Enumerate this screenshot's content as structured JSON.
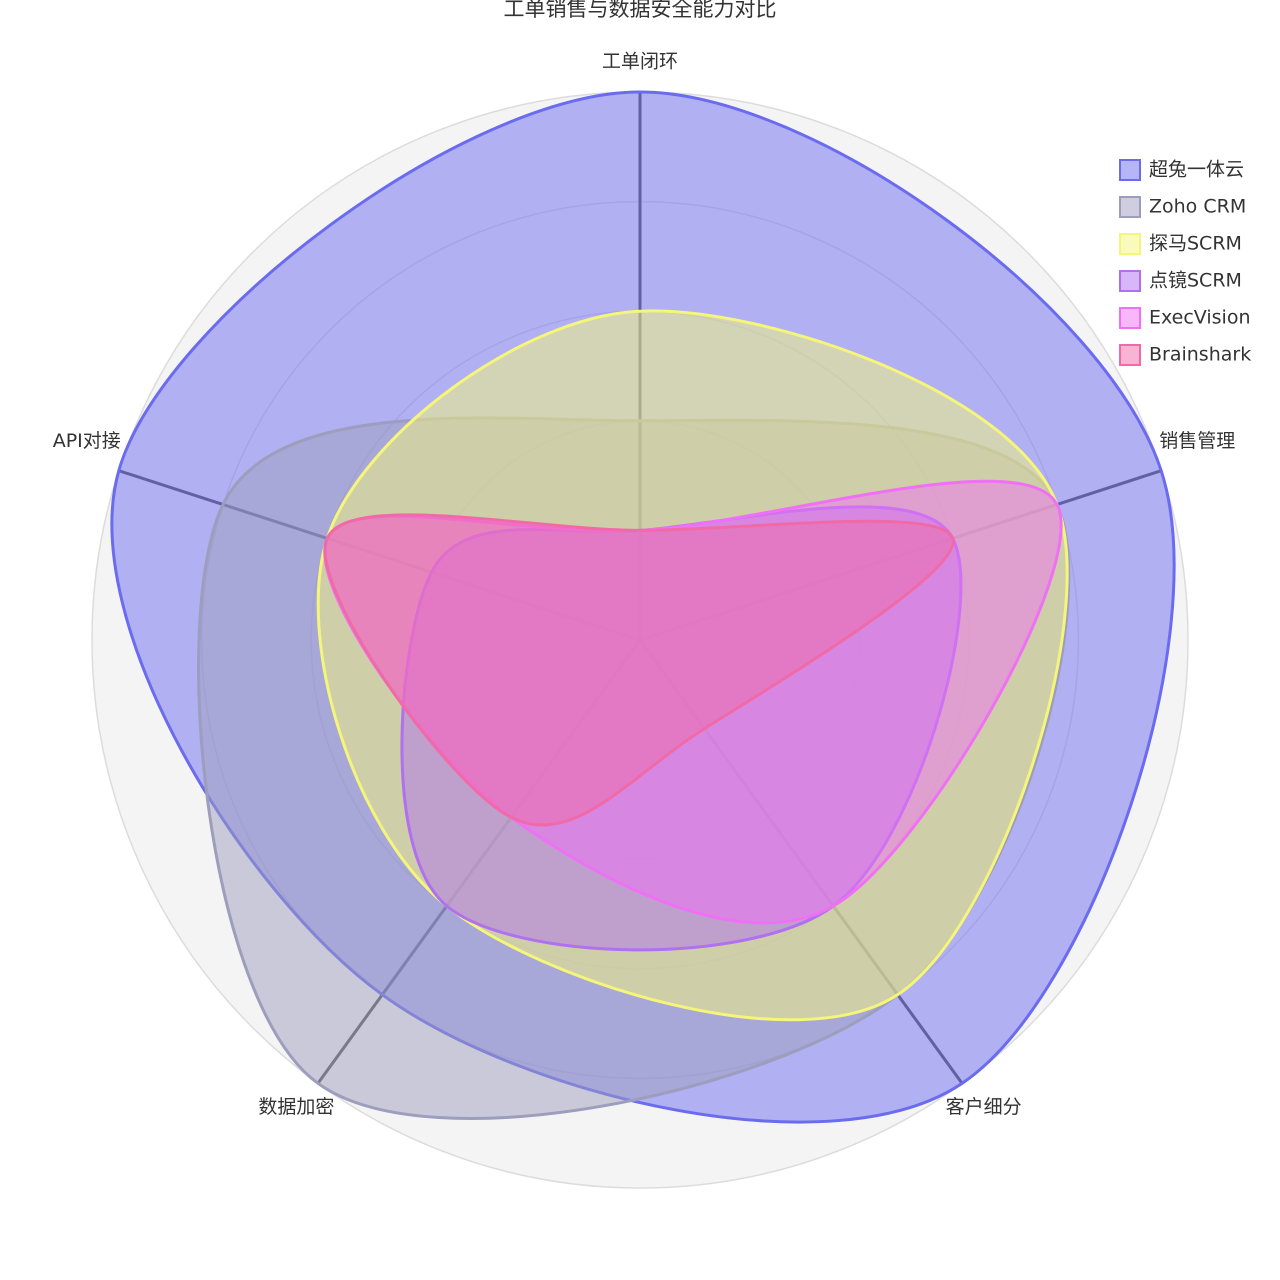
{
  "chart_data": {
    "type": "radar",
    "title": "工单销售与数据安全能力对比",
    "categories": [
      "工单闭环",
      "销售管理",
      "客户细分",
      "数据加密",
      "API对接"
    ],
    "rlim": [
      0,
      100
    ],
    "rticks": [
      20,
      40,
      60,
      80,
      100
    ],
    "series": [
      {
        "name": "超兔一体云",
        "color": "#6b6bf0",
        "values": [
          100,
          100,
          100,
          80,
          100
        ]
      },
      {
        "name": "Zoho CRM",
        "color": "#9d9dbd",
        "values": [
          40,
          80,
          80,
          100,
          80
        ]
      },
      {
        "name": "探马SCRM",
        "color": "#f5f57a",
        "values": [
          60,
          80,
          80,
          60,
          60
        ]
      },
      {
        "name": "点镜SCRM",
        "color": "#b070f0",
        "values": [
          20,
          60,
          60,
          60,
          40
        ]
      },
      {
        "name": "ExecVision",
        "color": "#f070f5",
        "values": [
          20,
          80,
          60,
          40,
          60
        ]
      },
      {
        "name": "Brainshark",
        "color": "#f06aa8",
        "values": [
          20,
          60,
          20,
          40,
          60
        ]
      }
    ]
  }
}
